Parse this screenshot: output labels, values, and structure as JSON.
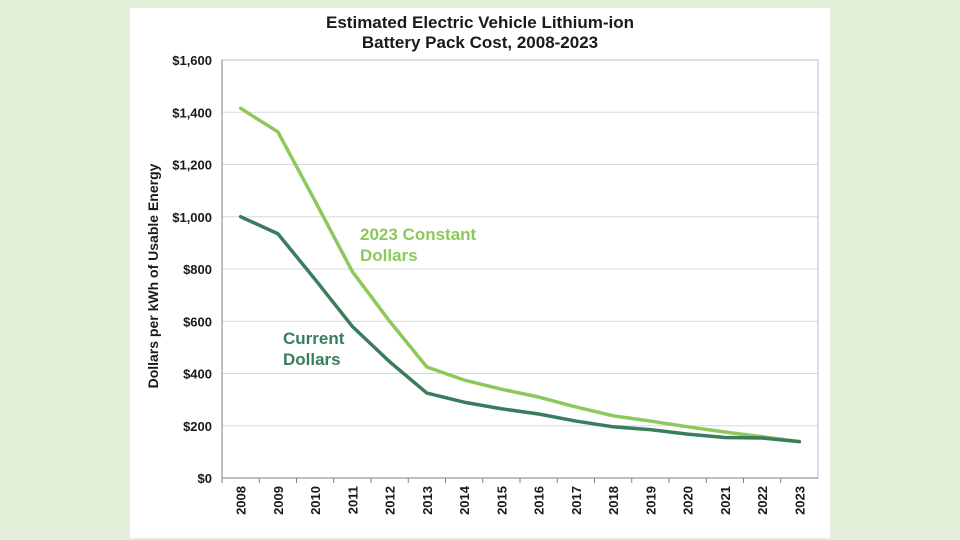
{
  "colors": {
    "page_background": "#e2f0d9",
    "plot_background": "#ffffff",
    "constant_series": "#8dc95a",
    "current_series": "#3a7d5c"
  },
  "chart_data": {
    "type": "line",
    "title_lines": [
      "Estimated Electric Vehicle Lithium-ion",
      "Battery Pack Cost, 2008-2023"
    ],
    "xlabel": "",
    "ylabel": "Dollars per kWh of Usable Energy",
    "ylim": [
      0,
      1600
    ],
    "yticks": [
      0,
      200,
      400,
      600,
      800,
      1000,
      1200,
      1400,
      1600
    ],
    "ytick_labels": [
      "$0",
      "$200",
      "$400",
      "$600",
      "$800",
      "$1,000",
      "$1,200",
      "$1,400",
      "$1,600"
    ],
    "grid": "horizontal",
    "legend": "none",
    "categories": [
      "2008",
      "2009",
      "2010",
      "2011",
      "2012",
      "2013",
      "2014",
      "2015",
      "2016",
      "2017",
      "2018",
      "2019",
      "2020",
      "2021",
      "2022",
      "2023"
    ],
    "series": [
      {
        "key": "constant",
        "values": [
          1415,
          1325,
          1060,
          790,
          600,
          425,
          375,
          340,
          310,
          272,
          238,
          218,
          196,
          176,
          158,
          140
        ]
      },
      {
        "key": "current",
        "values": [
          1000,
          935,
          760,
          580,
          445,
          325,
          290,
          265,
          245,
          218,
          196,
          185,
          168,
          155,
          153,
          139
        ]
      }
    ],
    "annotations": [
      {
        "series": "constant",
        "lines": [
          "2023 Constant",
          "Dollars"
        ]
      },
      {
        "series": "current",
        "lines": [
          "Current",
          "Dollars"
        ]
      }
    ]
  }
}
